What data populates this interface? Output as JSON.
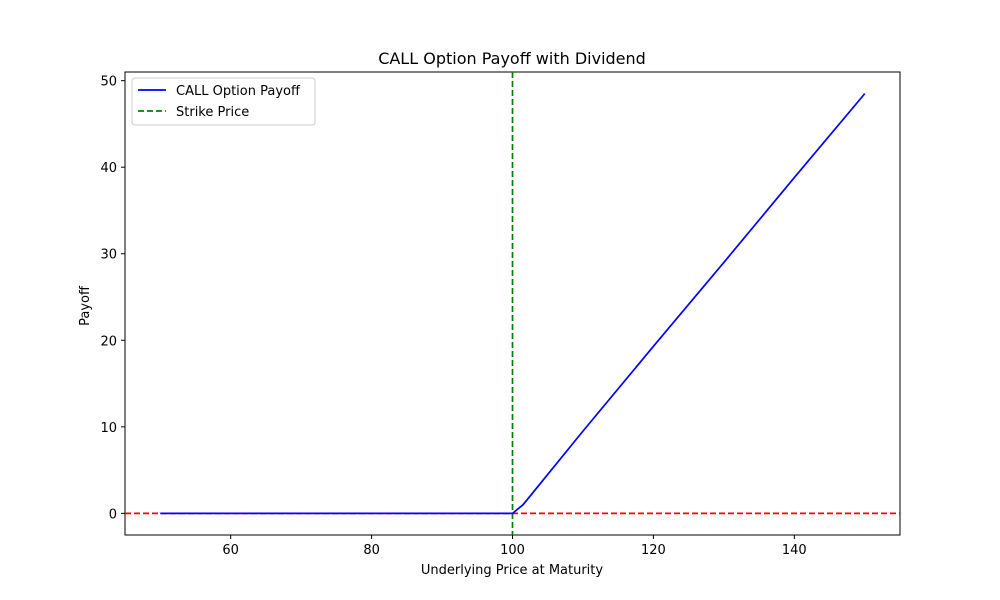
{
  "chart_data": {
    "type": "line",
    "title": "CALL Option Payoff with Dividend",
    "xlabel": "Underlying Price at Maturity",
    "ylabel": "Payoff",
    "xlim": [
      45,
      155
    ],
    "ylim": [
      -2.5,
      51
    ],
    "xticks": [
      60,
      80,
      100,
      120,
      140
    ],
    "yticks": [
      0,
      10,
      20,
      30,
      40,
      50
    ],
    "grid": false,
    "legend_position": "top-left",
    "series": [
      {
        "name": "CALL Option Payoff",
        "color": "#0000ff",
        "style": "solid",
        "x": [
          50,
          60,
          70,
          80,
          90,
          99.5,
          100,
          101.5,
          110,
          120,
          130,
          140,
          150
        ],
        "y": [
          0,
          0,
          0,
          0,
          0,
          0,
          0,
          1,
          9.5,
          19.3,
          29,
          38.8,
          48.5
        ]
      }
    ],
    "reference_lines": [
      {
        "name": "Strike Price",
        "orientation": "vertical",
        "value": 100,
        "color": "#008000",
        "style": "dashed",
        "in_legend": true
      },
      {
        "orientation": "horizontal",
        "value": 0,
        "color": "#ff0000",
        "style": "dashed",
        "in_legend": false
      }
    ]
  }
}
